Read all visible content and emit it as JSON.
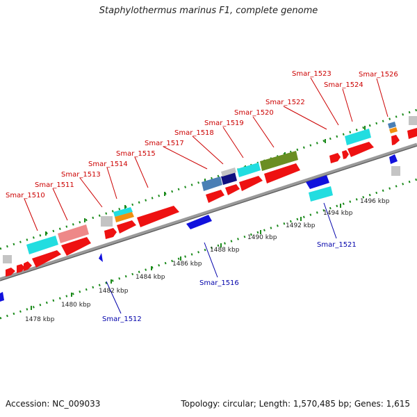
{
  "title": "Staphylothermus marinus F1, complete genome",
  "accession": "Accession: NC_009033",
  "topology": "Topology: circular; Length: 1,570,485 bp; Genes: 1,615",
  "colors": {
    "red": "#ee1111",
    "cyan": "#22dde0",
    "pink": "#ee8888",
    "gray": "#c4c4c4",
    "orange": "#f09010",
    "steelblue": "#4a7fb5",
    "navy": "#101080",
    "olive": "#6a8e22",
    "blue": "#1111dd",
    "tick": "#1a8a1a",
    "backbone": "#999999"
  },
  "top_labels": [
    "Smar_1510",
    "Smar_1511",
    "Smar_1513",
    "Smar_1514",
    "Smar_1515",
    "Smar_1517",
    "Smar_1518",
    "Smar_1519",
    "Smar_1520",
    "Smar_1522",
    "Smar_1523",
    "Smar_1524",
    "Smar_1526"
  ],
  "bottom_labels": [
    "Smar_1512",
    "Smar_1516",
    "Smar_1521"
  ],
  "kbp_labels": [
    "1478 kbp",
    "1480 kbp",
    "1482 kbp",
    "1484 kbp",
    "1486 kbp",
    "1488 kbp",
    "1490 kbp",
    "1492 kbp",
    "1494 kbp",
    "1496 kbp"
  ]
}
